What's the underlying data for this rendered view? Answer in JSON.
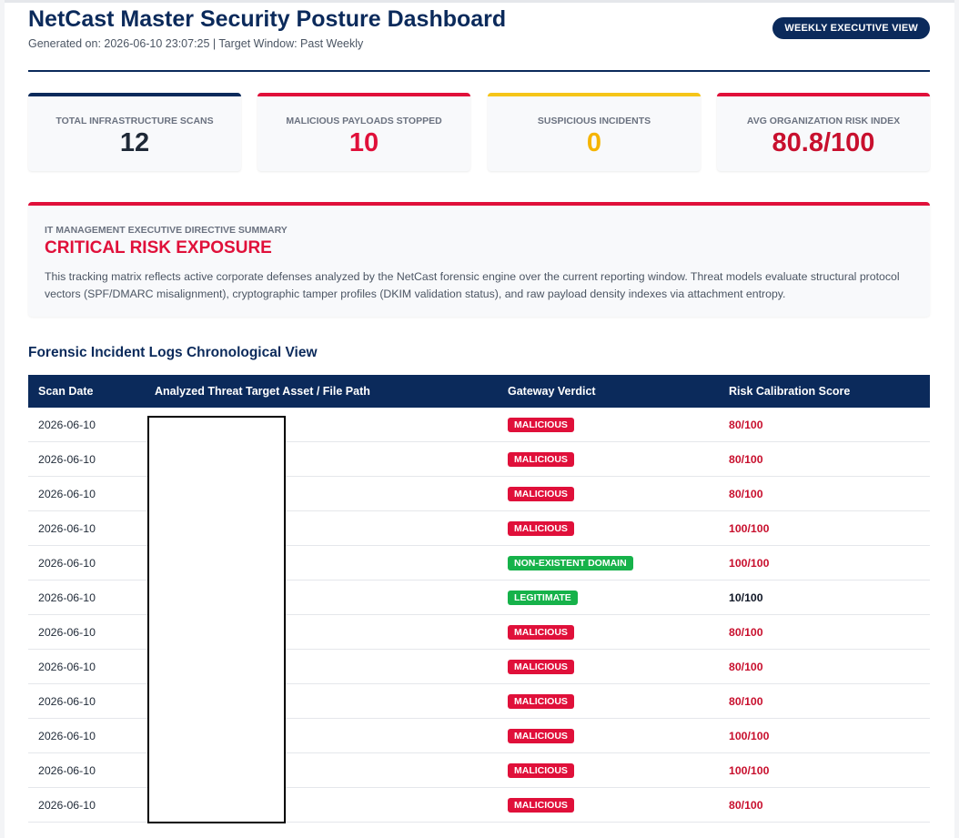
{
  "header": {
    "title": "NetCast Master Security Posture Dashboard",
    "subtitle": "Generated on: 2026-06-10 23:07:25 | Target Window: Past Weekly",
    "view_label": "WEEKLY EXECUTIVE VIEW"
  },
  "colors": {
    "navy": "#0b2a5b",
    "critical": "#e0103a",
    "warning": "#f5c518",
    "success": "#16b24a"
  },
  "metrics": [
    {
      "label": "TOTAL INFRASTRUCTURE SCANS",
      "value": "12",
      "accent": "#0b2a5b",
      "value_color": "#1f2937"
    },
    {
      "label": "MALICIOUS PAYLOADS STOPPED",
      "value": "10",
      "accent": "#e0103a",
      "value_color": "#e0103a"
    },
    {
      "label": "SUSPICIOUS INCIDENTS",
      "value": "0",
      "accent": "#f5c518",
      "value_color": "#f5b400"
    },
    {
      "label": "AVG ORGANIZATION RISK INDEX",
      "value": "80.8/100",
      "accent": "#e0103a",
      "value_color": "#c8102e"
    }
  ],
  "summary": {
    "kicker": "IT MANAGEMENT EXECUTIVE DIRECTIVE SUMMARY",
    "headline": "CRITICAL RISK EXPOSURE",
    "body": "This tracking matrix reflects active corporate defenses analyzed by the NetCast forensic engine over the current reporting window. Threat models evaluate structural protocol vectors (SPF/DMARC misalignment), cryptographic tamper profiles (DKIM validation status), and raw payload density indexes via attachment entropy."
  },
  "logs": {
    "title": "Forensic Incident Logs Chronological View",
    "columns": [
      "Scan Date",
      "Analyzed Threat Target Asset / File Path",
      "Gateway Verdict",
      "Risk Calibration Score"
    ],
    "rows": [
      {
        "date": "2026-06-10",
        "asset": "",
        "verdict": "MALICIOUS",
        "verdict_color": "#e0103a",
        "score": "80/100",
        "score_color": "#c8102e"
      },
      {
        "date": "2026-06-10",
        "asset": "",
        "verdict": "MALICIOUS",
        "verdict_color": "#e0103a",
        "score": "80/100",
        "score_color": "#c8102e"
      },
      {
        "date": "2026-06-10",
        "asset": "",
        "verdict": "MALICIOUS",
        "verdict_color": "#e0103a",
        "score": "80/100",
        "score_color": "#c8102e"
      },
      {
        "date": "2026-06-10",
        "asset": "",
        "verdict": "MALICIOUS",
        "verdict_color": "#e0103a",
        "score": "100/100",
        "score_color": "#c8102e"
      },
      {
        "date": "2026-06-10",
        "asset": "",
        "verdict": "NON-EXISTENT DOMAIN",
        "verdict_color": "#16b24a",
        "score": "100/100",
        "score_color": "#c8102e"
      },
      {
        "date": "2026-06-10",
        "asset": "",
        "verdict": "LEGITIMATE",
        "verdict_color": "#16b24a",
        "score": "10/100",
        "score_color": "#111827"
      },
      {
        "date": "2026-06-10",
        "asset": "",
        "verdict": "MALICIOUS",
        "verdict_color": "#e0103a",
        "score": "80/100",
        "score_color": "#c8102e"
      },
      {
        "date": "2026-06-10",
        "asset": "",
        "verdict": "MALICIOUS",
        "verdict_color": "#e0103a",
        "score": "80/100",
        "score_color": "#c8102e"
      },
      {
        "date": "2026-06-10",
        "asset": "",
        "verdict": "MALICIOUS",
        "verdict_color": "#e0103a",
        "score": "80/100",
        "score_color": "#c8102e"
      },
      {
        "date": "2026-06-10",
        "asset": "",
        "verdict": "MALICIOUS",
        "verdict_color": "#e0103a",
        "score": "100/100",
        "score_color": "#c8102e"
      },
      {
        "date": "2026-06-10",
        "asset": "",
        "verdict": "MALICIOUS",
        "verdict_color": "#e0103a",
        "score": "100/100",
        "score_color": "#c8102e"
      },
      {
        "date": "2026-06-10",
        "asset": "",
        "verdict": "MALICIOUS",
        "verdict_color": "#e0103a",
        "score": "80/100",
        "score_color": "#c8102e"
      }
    ]
  }
}
